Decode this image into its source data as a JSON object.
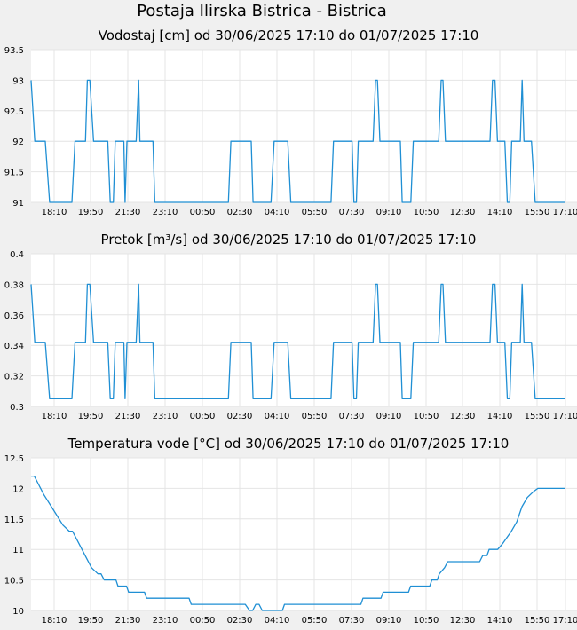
{
  "page": {
    "title": "Postaja Ilirska Bistrica - Bistrica"
  },
  "theme": {
    "line_color": "#1f8fd4",
    "plot_bg": "#ffffff",
    "grid": "#e4e4e4",
    "background": "#f0f0f0"
  },
  "chart_data": [
    {
      "type": "line",
      "title": "Vodostaj [cm] od 30/06/2025 17:10 do 01/07/2025 17:10",
      "ylim": [
        91,
        93.5
      ],
      "yticks": [
        "93.5",
        "93",
        "92.5",
        "92",
        "91.5",
        "91"
      ],
      "xlim": [
        "17:10",
        "17:10"
      ],
      "xticks": [
        "18:10",
        "19:50",
        "21:30",
        "23:10",
        "00:50",
        "02:30",
        "04:10",
        "05:50",
        "07:30",
        "09:10",
        "10:50",
        "12:30",
        "14:10",
        "15:50",
        "17:10"
      ],
      "grid": true,
      "series": [
        {
          "values": [
            [
              0,
              93
            ],
            [
              6,
              92
            ],
            [
              23,
              92
            ],
            [
              30,
              91
            ],
            [
              66,
              91
            ],
            [
              71,
              92
            ],
            [
              88,
              92
            ],
            [
              91,
              93
            ],
            [
              95,
              93
            ],
            [
              101,
              92
            ],
            [
              124,
              92
            ],
            [
              128,
              91
            ],
            [
              133,
              91
            ],
            [
              136,
              92
            ],
            [
              150,
              92
            ],
            [
              152,
              91
            ],
            [
              155,
              92
            ],
            [
              170,
              92
            ],
            [
              174,
              93
            ],
            [
              176,
              92
            ],
            [
              197,
              92
            ],
            [
              200,
              91
            ],
            [
              319,
              91
            ],
            [
              323,
              92
            ],
            [
              356,
              92
            ],
            [
              359,
              91
            ],
            [
              388,
              91
            ],
            [
              393,
              92
            ],
            [
              415,
              92
            ],
            [
              420,
              91
            ],
            [
              485,
              91
            ],
            [
              489,
              92
            ],
            [
              519,
              92
            ],
            [
              522,
              91
            ],
            [
              526,
              91
            ],
            [
              529,
              92
            ],
            [
              553,
              92
            ],
            [
              557,
              93
            ],
            [
              560,
              93
            ],
            [
              564,
              92
            ],
            [
              597,
              92
            ],
            [
              600,
              91
            ],
            [
              614,
              91
            ],
            [
              618,
              92
            ],
            [
              659,
              92
            ],
            [
              663,
              93
            ],
            [
              666,
              93
            ],
            [
              670,
              92
            ],
            [
              742,
              92
            ],
            [
              746,
              93
            ],
            [
              750,
              93
            ],
            [
              754,
              92
            ],
            [
              766,
              92
            ],
            [
              770,
              91
            ],
            [
              774,
              91
            ],
            [
              777,
              92
            ],
            [
              791,
              92
            ],
            [
              794,
              93
            ],
            [
              797,
              92
            ],
            [
              809,
              92
            ],
            [
              815,
              91
            ],
            [
              864,
              91
            ]
          ]
        }
      ]
    },
    {
      "type": "line",
      "title": "Pretok [m³/s] od 30/06/2025 17:10 do 01/07/2025 17:10",
      "ylim": [
        0.3,
        0.4
      ],
      "yticks": [
        "0.4",
        "0.38",
        "0.36",
        "0.34",
        "0.32",
        "0.3"
      ],
      "xlim": [
        "17:10",
        "17:10"
      ],
      "xticks": [
        "18:10",
        "19:50",
        "21:30",
        "23:10",
        "00:50",
        "02:30",
        "04:10",
        "05:50",
        "07:30",
        "09:10",
        "10:50",
        "12:30",
        "14:10",
        "15:50",
        "17:10"
      ],
      "grid": true,
      "series": [
        {
          "values": [
            [
              0,
              0.38
            ],
            [
              6,
              0.342
            ],
            [
              23,
              0.342
            ],
            [
              30,
              0.305
            ],
            [
              66,
              0.305
            ],
            [
              71,
              0.342
            ],
            [
              88,
              0.342
            ],
            [
              91,
              0.38
            ],
            [
              95,
              0.38
            ],
            [
              101,
              0.342
            ],
            [
              124,
              0.342
            ],
            [
              128,
              0.305
            ],
            [
              133,
              0.305
            ],
            [
              136,
              0.342
            ],
            [
              150,
              0.342
            ],
            [
              152,
              0.305
            ],
            [
              155,
              0.342
            ],
            [
              170,
              0.342
            ],
            [
              174,
              0.38
            ],
            [
              176,
              0.342
            ],
            [
              197,
              0.342
            ],
            [
              200,
              0.305
            ],
            [
              319,
              0.305
            ],
            [
              323,
              0.342
            ],
            [
              356,
              0.342
            ],
            [
              359,
              0.305
            ],
            [
              388,
              0.305
            ],
            [
              393,
              0.342
            ],
            [
              415,
              0.342
            ],
            [
              420,
              0.305
            ],
            [
              485,
              0.305
            ],
            [
              489,
              0.342
            ],
            [
              519,
              0.342
            ],
            [
              522,
              0.305
            ],
            [
              526,
              0.305
            ],
            [
              529,
              0.342
            ],
            [
              553,
              0.342
            ],
            [
              557,
              0.38
            ],
            [
              560,
              0.38
            ],
            [
              564,
              0.342
            ],
            [
              597,
              0.342
            ],
            [
              600,
              0.305
            ],
            [
              614,
              0.305
            ],
            [
              618,
              0.342
            ],
            [
              659,
              0.342
            ],
            [
              663,
              0.38
            ],
            [
              666,
              0.38
            ],
            [
              670,
              0.342
            ],
            [
              742,
              0.342
            ],
            [
              746,
              0.38
            ],
            [
              750,
              0.38
            ],
            [
              754,
              0.342
            ],
            [
              766,
              0.342
            ],
            [
              770,
              0.305
            ],
            [
              774,
              0.305
            ],
            [
              777,
              0.342
            ],
            [
              791,
              0.342
            ],
            [
              794,
              0.38
            ],
            [
              797,
              0.342
            ],
            [
              809,
              0.342
            ],
            [
              815,
              0.305
            ],
            [
              864,
              0.305
            ]
          ]
        }
      ]
    },
    {
      "type": "line",
      "title": "Temperatura vode [°C] od 30/06/2025 17:10 do 01/07/2025 17:10",
      "ylim": [
        10,
        12.5
      ],
      "yticks": [
        "12.5",
        "12",
        "11.5",
        "11",
        "10.5",
        "10"
      ],
      "xlim": [
        "17:10",
        "17:10"
      ],
      "xticks": [
        "18:10",
        "19:50",
        "21:30",
        "23:10",
        "00:50",
        "02:30",
        "04:10",
        "05:50",
        "07:30",
        "09:10",
        "10:50",
        "12:30",
        "14:10",
        "15:50",
        "17:10"
      ],
      "grid": true,
      "series": [
        {
          "values": [
            [
              0,
              12.2
            ],
            [
              6,
              12.2
            ],
            [
              12,
              12.1
            ],
            [
              24,
              11.9
            ],
            [
              42,
              11.65
            ],
            [
              60,
              11.4
            ],
            [
              72,
              11.3
            ],
            [
              78,
              11.3
            ],
            [
              90,
              11.1
            ],
            [
              102,
              10.9
            ],
            [
              114,
              10.7
            ],
            [
              126,
              10.6
            ],
            [
              132,
              10.6
            ],
            [
              138,
              10.5
            ],
            [
              160,
              10.5
            ],
            [
              164,
              10.4
            ],
            [
              180,
              10.4
            ],
            [
              184,
              10.3
            ],
            [
              214,
              10.3
            ],
            [
              218,
              10.2
            ],
            [
              298,
              10.2
            ],
            [
              302,
              10.1
            ],
            [
              404,
              10.1
            ],
            [
              408,
              10.05
            ],
            [
              412,
              10
            ],
            [
              418,
              10
            ],
            [
              424,
              10.1
            ],
            [
              430,
              10.1
            ],
            [
              436,
              10
            ],
            [
              474,
              10
            ],
            [
              478,
              10.1
            ],
            [
              622,
              10.1
            ],
            [
              626,
              10.2
            ],
            [
              660,
              10.2
            ],
            [
              664,
              10.3
            ],
            [
              712,
              10.3
            ],
            [
              716,
              10.4
            ],
            [
              752,
              10.4
            ],
            [
              756,
              10.5
            ],
            [
              766,
              10.5
            ],
            [
              770,
              10.6
            ],
            [
              780,
              10.7
            ],
            [
              786,
              10.8
            ],
            [
              846,
              10.8
            ],
            [
              852,
              10.9
            ],
            [
              860,
              10.9
            ],
            [
              864,
              11
            ],
            [
              880,
              11
            ],
            [
              890,
              11.1
            ],
            [
              906,
              11.3
            ],
            [
              916,
              11.45
            ],
            [
              926,
              11.7
            ],
            [
              936,
              11.85
            ],
            [
              948,
              11.95
            ],
            [
              956,
              12
            ],
            [
              1008,
              12
            ]
          ]
        }
      ]
    }
  ]
}
